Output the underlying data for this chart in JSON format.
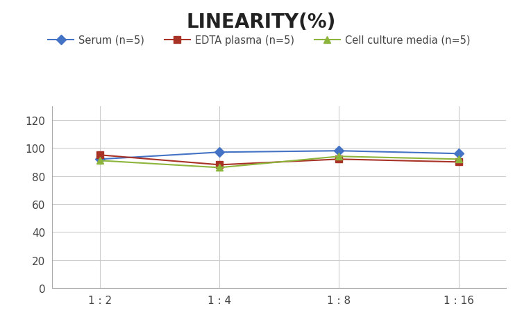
{
  "title": "LINEARITY(%)",
  "x_labels": [
    "1 : 2",
    "1 : 4",
    "1 : 8",
    "1 : 16"
  ],
  "x_positions": [
    0,
    1,
    2,
    3
  ],
  "series": [
    {
      "label": "Serum (n=5)",
      "color": "#4472C4",
      "marker": "D",
      "marker_color": "#4472C4",
      "values": [
        92,
        97,
        98,
        96
      ]
    },
    {
      "label": "EDTA plasma (n=5)",
      "color": "#A93226",
      "marker": "s",
      "marker_color": "#A93226",
      "values": [
        95,
        88,
        92,
        90
      ]
    },
    {
      "label": "Cell culture media (n=5)",
      "color": "#8DB53C",
      "marker": "^",
      "marker_color": "#8DB53C",
      "values": [
        91,
        86,
        94,
        92
      ]
    }
  ],
  "ylim": [
    0,
    130
  ],
  "yticks": [
    0,
    20,
    40,
    60,
    80,
    100,
    120
  ],
  "ylabel": "",
  "xlabel": "",
  "title_fontsize": 20,
  "legend_fontsize": 10.5,
  "tick_fontsize": 11,
  "background_color": "#ffffff",
  "grid_color": "#cccccc"
}
